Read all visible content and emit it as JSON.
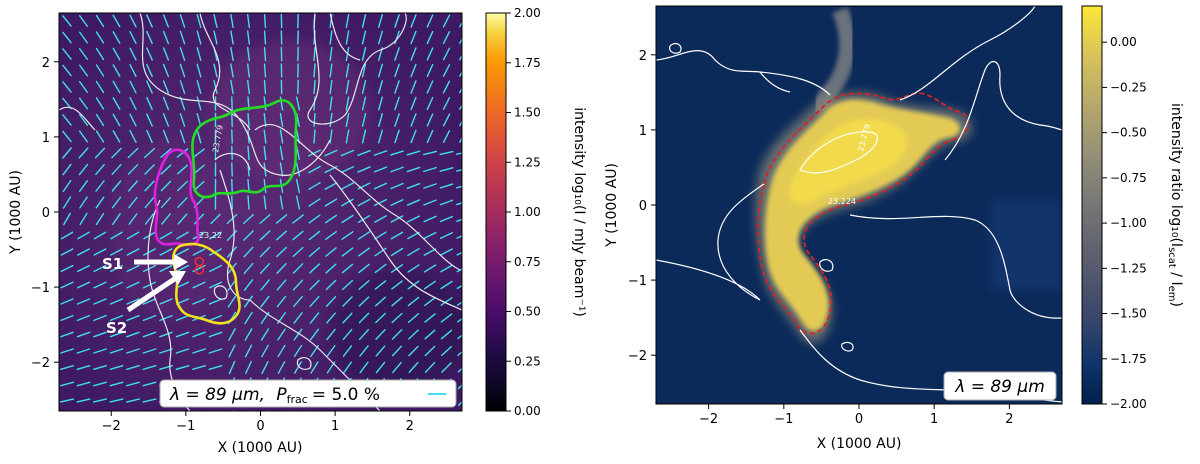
{
  "chart_data": [
    {
      "type": "heatmap",
      "xlabel": "X (1000 AU)",
      "ylabel": "Y (1000 AU)",
      "xlim": [
        -2.7,
        2.7
      ],
      "ylim": [
        -2.65,
        2.65
      ],
      "xticks": [
        "−2",
        "−1",
        "0",
        "1",
        "2"
      ],
      "yticks": [
        "−2",
        "−1",
        "0",
        "1",
        "2"
      ],
      "colorbar": {
        "label": "intensity log₁₀(I / mJy beam⁻¹)",
        "range": [
          0,
          2
        ],
        "ticks": [
          "0.00",
          "0.25",
          "0.50",
          "0.75",
          "1.00",
          "1.25",
          "1.50",
          "1.75",
          "2.00"
        ],
        "colormap": "inferno"
      },
      "contour_labels": [
        "23.779",
        "23.22"
      ],
      "vector_color": "#3fe0ee",
      "region_colors": {
        "green": "#22dd22",
        "magenta": "#e020e0",
        "yellow": "#f2e21a"
      },
      "sources": [
        {
          "name": "S1",
          "x": -0.82,
          "y": -0.66
        },
        {
          "name": "S2",
          "x": -0.82,
          "y": -0.77
        }
      ],
      "annotation": {
        "wavelength": "λ = 89 μm,",
        "pfrac_symbol": "P",
        "pfrac_sub": "frac",
        "pfrac_value": "= 5.0 %"
      }
    },
    {
      "type": "heatmap",
      "xlabel": "X (1000 AU)",
      "ylabel": "Y (1000 AU)",
      "xlim": [
        -2.7,
        2.7
      ],
      "ylim": [
        -2.65,
        2.65
      ],
      "xticks": [
        "−2",
        "−1",
        "0",
        "1",
        "2"
      ],
      "yticks": [
        "−2",
        "−1",
        "0",
        "1",
        "2"
      ],
      "colorbar": {
        "label": "intensity ratio  log₁₀(I",
        "label_sub1": "scat",
        "label_mid": " / I",
        "label_sub2": "em",
        "label_end": ")",
        "range": [
          -2,
          0.2
        ],
        "ticks": [
          "−2.00",
          "−1.75",
          "−1.50",
          "−1.25",
          "−1.00",
          "−0.75",
          "−0.50",
          "−0.25",
          "0.00"
        ],
        "colormap": "cividis"
      },
      "contour_labels": [
        "23.779",
        "23.224"
      ],
      "outline_color": "#dd2222",
      "annotation": {
        "wavelength": "λ = 89 μm"
      }
    }
  ]
}
